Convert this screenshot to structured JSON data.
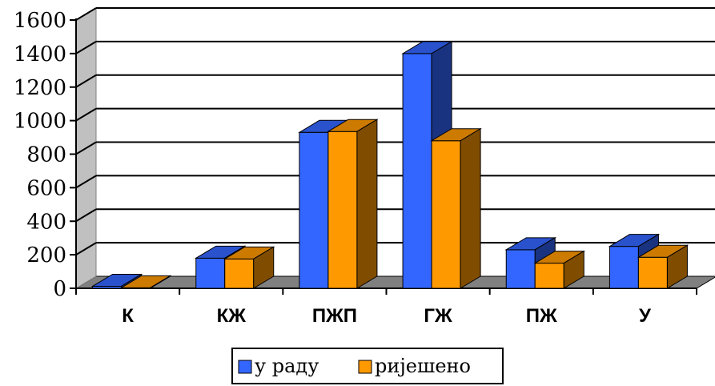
{
  "chart_data": {
    "type": "bar",
    "categories": [
      "К",
      "КЖ",
      "ПЖП",
      "ГЖ",
      "ПЖ",
      "У"
    ],
    "series": [
      {
        "name": "у раду",
        "values": [
          12,
          180,
          930,
          1400,
          230,
          250
        ],
        "color": "#3366ff"
      },
      {
        "name": "ријешено",
        "values": [
          3,
          175,
          935,
          880,
          150,
          185
        ],
        "color": "#ff9900"
      }
    ],
    "yticks": [
      "0",
      "200",
      "400",
      "600",
      "800",
      "1000",
      "1200",
      "1400",
      "1600"
    ],
    "ylim": [
      0,
      1600
    ],
    "grid": true,
    "legend_position": "bottom",
    "style": "3d-clustered-column"
  }
}
